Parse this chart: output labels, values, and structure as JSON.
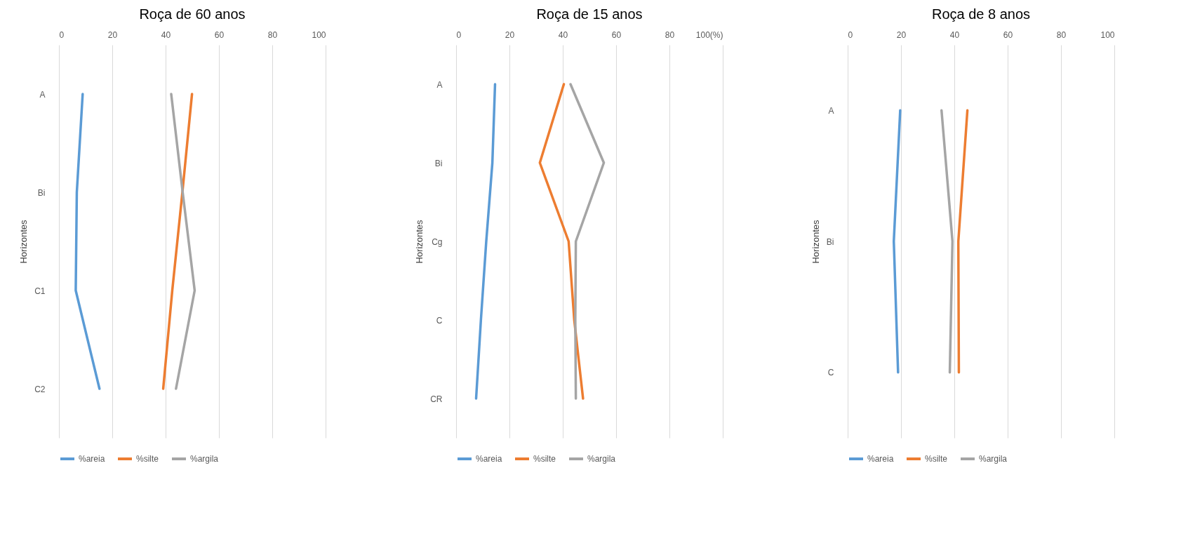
{
  "chart_data": [
    {
      "type": "line",
      "title": "Roça de 60 anos",
      "ylabel": "Horizontes",
      "orientation": "horizontal",
      "categories": [
        "A",
        "Bi",
        "C1",
        "C2"
      ],
      "xlim": [
        0,
        100
      ],
      "xticks": [
        0,
        20,
        40,
        60,
        80,
        100
      ],
      "grid": "x",
      "legend": "bottom",
      "series": [
        {
          "name": "%areia",
          "color": "#5b9bd5",
          "values": [
            8.9,
            6.7,
            6.3,
            15.2
          ]
        },
        {
          "name": "%silte",
          "color": "#ed7d31",
          "values": [
            49.9,
            46.3,
            42.5,
            39.1
          ]
        },
        {
          "name": "%argila",
          "color": "#a5a5a5",
          "values": [
            42.1,
            46.4,
            50.9,
            43.9
          ]
        }
      ]
    },
    {
      "type": "line",
      "title": "Roça de 15 anos",
      "ylabel": "Horizontes",
      "orientation": "horizontal",
      "categories": [
        "A",
        "Bi",
        "Cg",
        "C",
        "CR"
      ],
      "xlim": [
        0,
        100
      ],
      "xticks": [
        0,
        20,
        40,
        60,
        80,
        {
          "value": 100,
          "label": "100(%)"
        }
      ],
      "grid": "x",
      "legend": "bottom",
      "series": [
        {
          "name": "%areia",
          "color": "#5b9bd5",
          "values": [
            14.6,
            13.6,
            11.3,
            9.3,
            7.5
          ]
        },
        {
          "name": "%silte",
          "color": "#ed7d31",
          "values": [
            40.4,
            31.4,
            42.2,
            44.3,
            47.6
          ]
        },
        {
          "name": "%argila",
          "color": "#a5a5a5",
          "values": [
            42.9,
            55.4,
            44.9,
            44.7,
            44.9
          ]
        }
      ]
    },
    {
      "type": "line",
      "title": "Roça de 8 anos",
      "ylabel": "Horizontes",
      "orientation": "horizontal",
      "categories": [
        "A",
        "Bi",
        "C"
      ],
      "xlim": [
        0,
        100
      ],
      "xticks": [
        0,
        20,
        40,
        60,
        80,
        100
      ],
      "grid": "x",
      "legend": "bottom",
      "series": [
        {
          "name": "%areia",
          "color": "#5b9bd5",
          "values": [
            19.7,
            17.3,
            18.9
          ]
        },
        {
          "name": "%silte",
          "color": "#ed7d31",
          "values": [
            44.9,
            41.5,
            41.7
          ]
        },
        {
          "name": "%argila",
          "color": "#a5a5a5",
          "values": [
            35.2,
            39.3,
            38.3
          ]
        }
      ]
    }
  ]
}
